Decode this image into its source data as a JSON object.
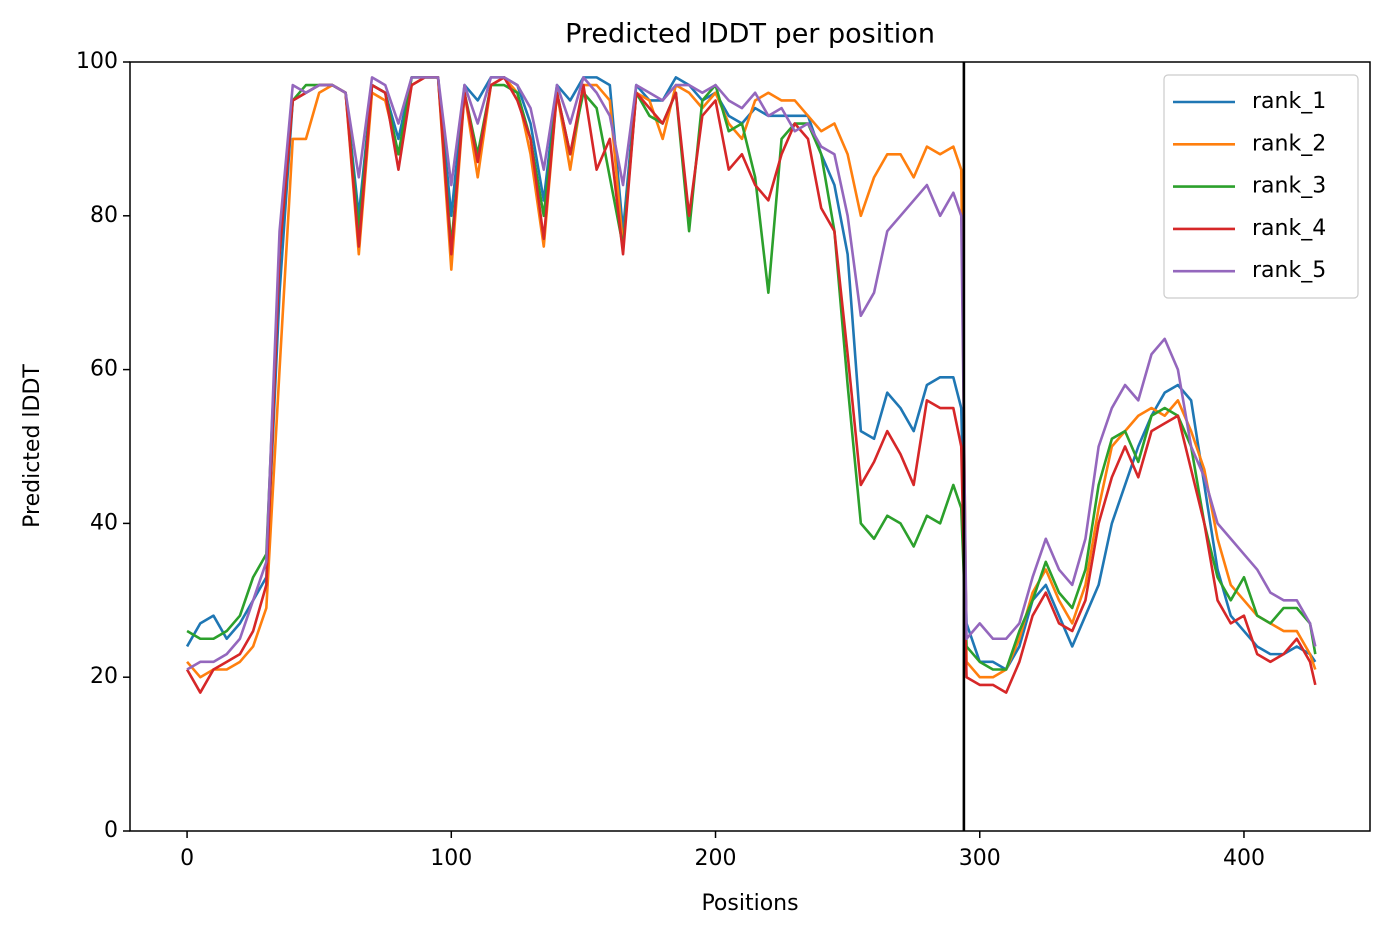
{
  "chart_data": {
    "type": "line",
    "title": "Predicted lDDT per position",
    "xlabel": "Positions",
    "ylabel": "Predicted lDDT",
    "x": [
      0,
      5,
      10,
      15,
      20,
      25,
      30,
      35,
      40,
      45,
      50,
      55,
      60,
      65,
      70,
      75,
      80,
      85,
      90,
      95,
      100,
      105,
      110,
      115,
      120,
      125,
      130,
      135,
      140,
      145,
      150,
      155,
      160,
      165,
      170,
      175,
      180,
      185,
      190,
      195,
      200,
      205,
      210,
      215,
      220,
      225,
      230,
      235,
      240,
      245,
      250,
      255,
      260,
      265,
      270,
      275,
      280,
      285,
      290,
      293,
      295,
      300,
      305,
      310,
      315,
      320,
      325,
      330,
      335,
      340,
      345,
      350,
      355,
      360,
      365,
      370,
      375,
      380,
      385,
      390,
      395,
      400,
      405,
      410,
      415,
      420,
      425,
      427
    ],
    "series": [
      {
        "name": "rank_1",
        "color": "#1f77b4",
        "values": [
          24,
          27,
          28,
          25,
          27,
          30,
          33,
          70,
          95,
          96,
          97,
          97,
          96,
          80,
          97,
          96,
          90,
          98,
          98,
          98,
          80,
          97,
          95,
          98,
          98,
          97,
          92,
          82,
          97,
          95,
          98,
          98,
          97,
          78,
          97,
          95,
          95,
          98,
          97,
          95,
          96,
          93,
          92,
          94,
          93,
          93,
          93,
          93,
          88,
          84,
          75,
          52,
          51,
          57,
          55,
          52,
          58,
          59,
          59,
          55,
          27,
          22,
          22,
          21,
          24,
          30,
          32,
          28,
          24,
          28,
          32,
          40,
          45,
          50,
          54,
          57,
          58,
          56,
          45,
          34,
          28,
          26,
          24,
          23,
          23,
          24,
          23,
          22
        ]
      },
      {
        "name": "rank_2",
        "color": "#ff7f0e",
        "values": [
          22,
          20,
          21,
          21,
          22,
          24,
          29,
          60,
          90,
          90,
          96,
          97,
          96,
          75,
          96,
          95,
          88,
          97,
          98,
          98,
          73,
          96,
          85,
          97,
          98,
          96,
          88,
          76,
          96,
          86,
          97,
          97,
          95,
          76,
          96,
          95,
          90,
          97,
          96,
          94,
          96,
          92,
          90,
          95,
          96,
          95,
          95,
          93,
          91,
          92,
          88,
          80,
          85,
          88,
          88,
          85,
          89,
          88,
          89,
          86,
          22,
          20,
          20,
          21,
          25,
          31,
          34,
          30,
          27,
          32,
          42,
          50,
          52,
          54,
          55,
          54,
          56,
          52,
          47,
          38,
          32,
          30,
          28,
          27,
          26,
          26,
          23,
          21
        ]
      },
      {
        "name": "rank_3",
        "color": "#2ca02c",
        "values": [
          26,
          25,
          25,
          26,
          28,
          33,
          36,
          75,
          95,
          97,
          97,
          97,
          96,
          78,
          97,
          96,
          88,
          98,
          98,
          98,
          76,
          96,
          88,
          97,
          97,
          96,
          90,
          80,
          96,
          88,
          96,
          94,
          85,
          76,
          96,
          93,
          92,
          96,
          78,
          95,
          97,
          91,
          92,
          85,
          70,
          90,
          92,
          92,
          88,
          78,
          58,
          40,
          38,
          41,
          40,
          37,
          41,
          40,
          45,
          42,
          24,
          22,
          21,
          21,
          26,
          30,
          35,
          31,
          29,
          34,
          45,
          51,
          52,
          48,
          54,
          55,
          54,
          50,
          40,
          33,
          30,
          33,
          28,
          27,
          29,
          29,
          27,
          23
        ]
      },
      {
        "name": "rank_4",
        "color": "#d62728",
        "values": [
          21,
          18,
          21,
          22,
          23,
          26,
          32,
          75,
          95,
          96,
          97,
          97,
          96,
          76,
          97,
          96,
          86,
          97,
          98,
          98,
          75,
          96,
          87,
          97,
          98,
          95,
          90,
          77,
          96,
          88,
          97,
          86,
          90,
          75,
          96,
          94,
          92,
          96,
          80,
          93,
          95,
          86,
          88,
          84,
          82,
          88,
          92,
          90,
          81,
          78,
          62,
          45,
          48,
          52,
          49,
          45,
          56,
          55,
          55,
          50,
          20,
          19,
          19,
          18,
          22,
          28,
          31,
          27,
          26,
          30,
          40,
          46,
          50,
          46,
          52,
          53,
          54,
          47,
          40,
          30,
          27,
          28,
          23,
          22,
          23,
          25,
          22,
          19
        ]
      },
      {
        "name": "rank_5",
        "color": "#9467bd",
        "values": [
          21,
          22,
          22,
          23,
          25,
          30,
          35,
          78,
          97,
          96,
          97,
          97,
          96,
          85,
          98,
          97,
          92,
          98,
          98,
          98,
          84,
          97,
          92,
          98,
          98,
          97,
          94,
          86,
          97,
          92,
          98,
          96,
          93,
          84,
          97,
          96,
          95,
          97,
          97,
          96,
          97,
          95,
          94,
          96,
          93,
          94,
          91,
          92,
          89,
          88,
          80,
          67,
          70,
          78,
          80,
          82,
          84,
          80,
          83,
          80,
          25,
          27,
          25,
          25,
          27,
          33,
          38,
          34,
          32,
          38,
          50,
          55,
          58,
          56,
          62,
          64,
          60,
          50,
          46,
          40,
          38,
          36,
          34,
          31,
          30,
          30,
          27,
          24
        ]
      }
    ],
    "vlines": [
      294
    ],
    "xlim": [
      -21.6,
      447.7
    ],
    "ylim": [
      0,
      100
    ],
    "xticks": [
      0,
      100,
      200,
      300,
      400
    ],
    "yticks": [
      0,
      20,
      40,
      60,
      80,
      100
    ],
    "grid": false,
    "legend": "upper right"
  }
}
